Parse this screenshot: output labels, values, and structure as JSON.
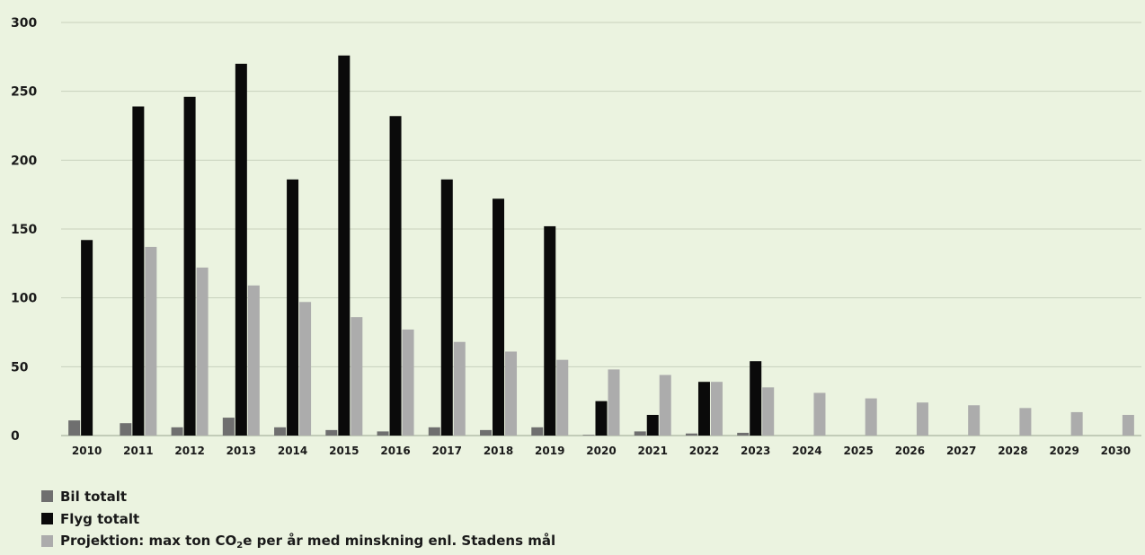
{
  "chart_data": {
    "type": "bar",
    "categories": [
      "2010",
      "2011",
      "2012",
      "2013",
      "2014",
      "2015",
      "2016",
      "2017",
      "2018",
      "2019",
      "2020",
      "2021",
      "2022",
      "2023",
      "2024",
      "2025",
      "2026",
      "2027",
      "2028",
      "2029",
      "2030"
    ],
    "series": [
      {
        "name": "Bil totalt",
        "color": "#6f6f6f",
        "values": [
          11,
          9,
          6,
          13,
          6,
          4,
          3,
          6,
          4,
          6,
          0.5,
          3,
          1.5,
          2,
          null,
          null,
          null,
          null,
          null,
          null,
          null
        ]
      },
      {
        "name": "Flyg totalt",
        "color": "#0a0a0a",
        "values": [
          142,
          239,
          246,
          270,
          186,
          276,
          232,
          186,
          172,
          152,
          25,
          15,
          39,
          54,
          null,
          null,
          null,
          null,
          null,
          null,
          null
        ]
      },
      {
        "name": "Projektion: max ton CO₂e per år med minskning enl. Stadens mål",
        "color": "#acacac",
        "values": [
          null,
          137,
          122,
          109,
          97,
          86,
          77,
          68,
          61,
          55,
          48,
          44,
          39,
          35,
          31,
          27,
          24,
          22,
          20,
          17,
          15
        ]
      }
    ],
    "yticks": [
      0,
      50,
      100,
      150,
      200,
      250,
      300
    ],
    "ylim": [
      0,
      300
    ],
    "grid": true,
    "legend": "bottom-left"
  },
  "legend": {
    "bil": "Bil totalt",
    "flyg": "Flyg totalt",
    "proj_prefix": "Projektion: max ton CO",
    "proj_sub": "2",
    "proj_suffix": "e per år med minskning enl. Stadens mål"
  }
}
